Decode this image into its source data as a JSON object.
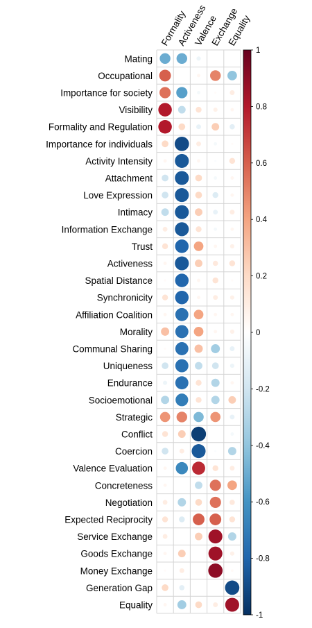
{
  "chart_data": {
    "type": "heatmap",
    "variant": "correlation circle matrix",
    "columns": [
      "Formality",
      "Activeness",
      "Valence",
      "Exchange",
      "Equality"
    ],
    "rows": [
      "Mating",
      "Occupational",
      "Importance for society",
      "Visibility",
      "Formality and Regulation",
      "Importance for individuals",
      "Activity Intensity",
      "Attachment",
      "Love Expression",
      "Intimacy",
      "Information Exchange",
      "Trust",
      "Activeness",
      "Spatial Distance",
      "Synchronicity",
      "Affiliation Coalition",
      "Morality",
      "Communal Sharing",
      "Uniqueness",
      "Endurance",
      "Socioemotional",
      "Strategic",
      "Conflict",
      "Coercion",
      "Valence Evaluation",
      "Concreteness",
      "Negotiation",
      "Expected Reciprocity",
      "Service Exchange",
      "Goods Exchange",
      "Money Exchange",
      "Generation Gap",
      "Equality"
    ],
    "values": [
      [
        -0.5,
        -0.5,
        -0.08,
        0.0,
        0.0
      ],
      [
        0.6,
        0.0,
        0.05,
        0.5,
        -0.4
      ],
      [
        0.55,
        -0.55,
        -0.05,
        0.02,
        0.1
      ],
      [
        0.8,
        -0.25,
        0.15,
        0.08,
        0.05
      ],
      [
        0.8,
        0.2,
        -0.1,
        0.25,
        -0.12
      ],
      [
        0.2,
        -0.9,
        0.1,
        -0.05,
        0.02
      ],
      [
        0.05,
        -0.85,
        0.05,
        -0.02,
        0.15
      ],
      [
        -0.2,
        -0.85,
        0.2,
        -0.05,
        0.05
      ],
      [
        -0.2,
        -0.85,
        0.2,
        -0.15,
        0.05
      ],
      [
        -0.25,
        -0.85,
        0.25,
        -0.1,
        0.1
      ],
      [
        0.1,
        -0.85,
        0.15,
        -0.05,
        0.05
      ],
      [
        0.15,
        -0.8,
        0.4,
        0.05,
        0.08
      ],
      [
        0.05,
        -0.85,
        0.25,
        0.12,
        0.15
      ],
      [
        0.02,
        -0.8,
        0.05,
        0.15,
        0.02
      ],
      [
        0.15,
        -0.8,
        0.05,
        0.1,
        0.08
      ],
      [
        0.05,
        -0.75,
        0.4,
        0.05,
        0.05
      ],
      [
        0.3,
        -0.75,
        0.4,
        0.05,
        0.08
      ],
      [
        0.02,
        -0.75,
        0.3,
        -0.35,
        -0.1
      ],
      [
        -0.2,
        -0.75,
        -0.25,
        -0.2,
        -0.08
      ],
      [
        -0.08,
        -0.75,
        0.15,
        -0.3,
        0.05
      ],
      [
        -0.3,
        -0.7,
        0.15,
        -0.3,
        0.25
      ],
      [
        0.45,
        0.5,
        -0.45,
        0.45,
        -0.1
      ],
      [
        0.15,
        0.25,
        -0.95,
        0.0,
        -0.05
      ],
      [
        -0.2,
        0.1,
        -0.85,
        -0.02,
        -0.3
      ],
      [
        0.05,
        -0.65,
        0.75,
        0.15,
        0.1
      ],
      [
        0.05,
        0.0,
        -0.25,
        0.55,
        0.4
      ],
      [
        0.1,
        -0.3,
        0.2,
        0.55,
        0.12
      ],
      [
        0.15,
        -0.15,
        0.6,
        0.6,
        0.15
      ],
      [
        0.1,
        0.0,
        0.25,
        0.85,
        -0.3
      ],
      [
        0.05,
        0.25,
        0.0,
        0.85,
        0.08
      ],
      [
        0.02,
        0.1,
        0.0,
        0.9,
        0.03
      ],
      [
        0.2,
        -0.12,
        0.0,
        0.0,
        -0.9
      ],
      [
        0.05,
        -0.35,
        0.2,
        0.1,
        0.85
      ]
    ],
    "colorbar": {
      "ticks": [
        1,
        0.8,
        0.6,
        0.4,
        0.2,
        0,
        -0.2,
        -0.4,
        -0.6,
        -0.8,
        -1
      ],
      "tick_labels": [
        "1",
        "0.8",
        "0.6",
        "0.4",
        "0.2",
        "0",
        "-0.2",
        "-0.4",
        "-0.6",
        "-0.8",
        "-1"
      ],
      "range": [
        -1,
        1
      ],
      "placement": "right"
    },
    "palette": {
      "negative_end": "#2E6DAF",
      "neutral": "#FFFFFF",
      "positive_end": "#A8202B"
    },
    "grid": true
  }
}
